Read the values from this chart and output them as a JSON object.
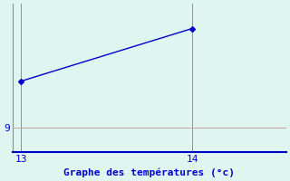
{
  "x": [
    13,
    14
  ],
  "y": [
    10.5,
    12.2
  ],
  "xlim": [
    12.95,
    14.55
  ],
  "ylim": [
    8.2,
    13.0
  ],
  "xticks": [
    13,
    14
  ],
  "yticks": [
    9
  ],
  "ytick_labels": [
    "9"
  ],
  "xlabel": "Graphe des températures (°c)",
  "background_color": "#dff5f0",
  "line_color": "#0000cc",
  "grid_color_h": "#c8a0a0",
  "grid_color_v": "#909090",
  "spine_color_left": "#909090",
  "spine_color_bottom": "#0000cc",
  "xlabel_color": "#0000cc",
  "tick_color": "#0000cc",
  "xlabel_fontsize": 8,
  "tick_fontsize": 8,
  "marker": "D",
  "marker_size": 3,
  "line_width": 1.0
}
